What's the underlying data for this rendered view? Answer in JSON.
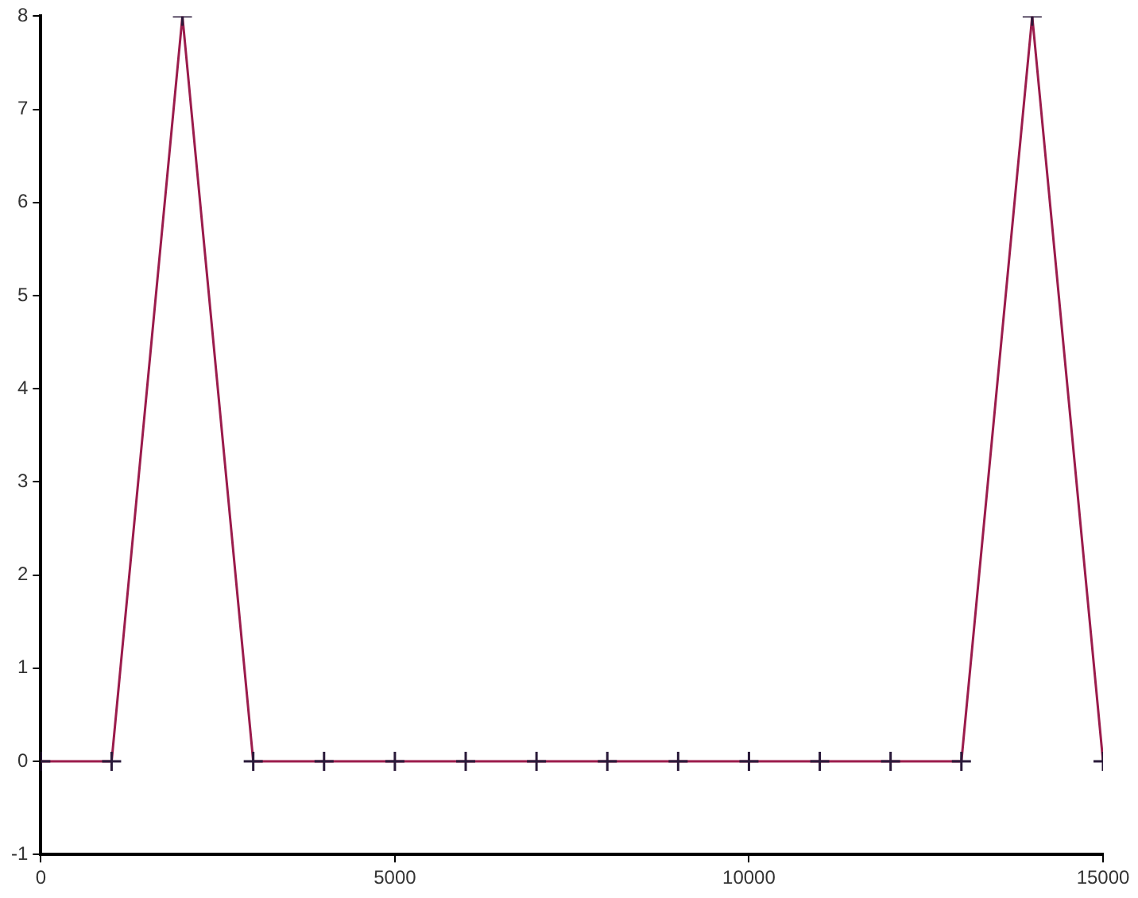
{
  "chart_data": {
    "type": "line",
    "x": [
      0,
      1000,
      2000,
      3000,
      4000,
      5000,
      6000,
      7000,
      8000,
      9000,
      10000,
      11000,
      12000,
      13000,
      14000,
      15000
    ],
    "series": [
      {
        "color": "#9b1c4c",
        "values": [
          0,
          0,
          8,
          0,
          0,
          0,
          0,
          0,
          0,
          0,
          0,
          0,
          0,
          0,
          8,
          0
        ]
      }
    ],
    "xlim": [
      0,
      15000
    ],
    "xticks": [
      0,
      5000,
      10000,
      15000
    ],
    "ylim": [
      -1,
      8
    ],
    "yticks": [
      -1,
      0,
      1,
      2,
      3,
      4,
      5,
      6,
      7,
      8
    ],
    "grid": false,
    "legend": false,
    "marker": "cross",
    "line_style": "solid"
  }
}
